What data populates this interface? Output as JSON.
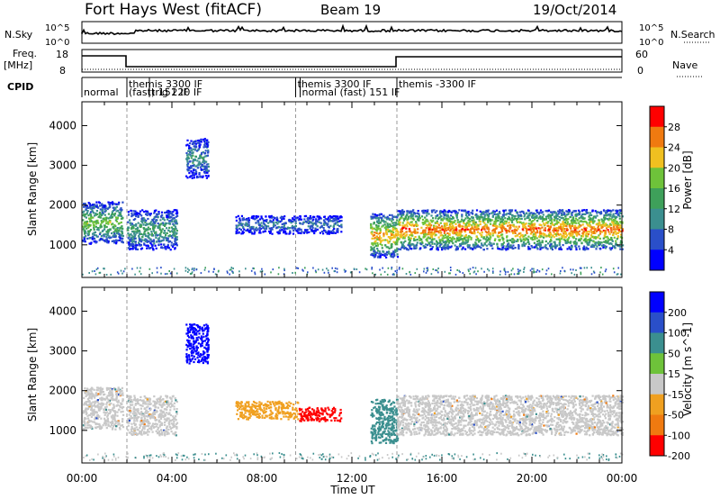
{
  "header": {
    "station": "Fort Hays West (fitACF)",
    "beam": "Beam 19",
    "date": "19/Oct/2014"
  },
  "strips": {
    "nsky_label": "N.Sky",
    "nsky_ticks": [
      "10^5",
      "10^0"
    ],
    "nsearch_label": "N.Search",
    "nsearch_ticks_right": [
      "10^5",
      "10^0"
    ],
    "freq_label": "Freq.",
    "freq_unit": "[MHz]",
    "freq_ticks": [
      "18",
      "8"
    ],
    "nave_label": "Nave",
    "nave_ticks": [
      "60",
      "0"
    ],
    "cpid_label": "CPID"
  },
  "cpid_segments": [
    {
      "label": "normal",
      "start_h": 0.0,
      "end_h": 2.0,
      "row": 1
    },
    {
      "label": "themis 3300 IF",
      "start_h": 2.0,
      "end_h": 9.5,
      "row": 0
    },
    {
      "label": "(fast) 151 IF",
      "start_h": 2.0,
      "end_h": 4.0,
      "row": 1
    },
    {
      "label": "trig 220 IF",
      "start_h": 3.0,
      "end_h": 9.5,
      "row": 1
    },
    {
      "label": "themis 3300 IF",
      "start_h": 9.5,
      "end_h": 11.0,
      "row": 0
    },
    {
      "label": "normal (fast) 151 IF",
      "start_h": 9.7,
      "end_h": 14.0,
      "row": 1
    },
    {
      "label": "themis -3300 IF",
      "start_h": 14.0,
      "end_h": 24.0,
      "row": 0
    }
  ],
  "chart_data": [
    {
      "type": "heatmap",
      "panel": "power",
      "xlabel": "",
      "ylabel": "Slant Range [km]",
      "x_range_h": [
        0,
        24
      ],
      "ylim": [
        180,
        4600
      ],
      "y_ticks": [
        1000,
        2000,
        3000,
        4000
      ],
      "colorbar": {
        "label": "Power [dB]",
        "ticks": [
          4,
          8,
          12,
          16,
          20,
          24,
          28
        ],
        "range": [
          0,
          32
        ],
        "colors": [
          "#0000ff",
          "#2a4fc9",
          "#3b8f8f",
          "#3ea05a",
          "#6ec23a",
          "#f0c020",
          "#f07a10",
          "#ff0000"
        ]
      },
      "regions": [
        {
          "name": "morning-echo",
          "x_h": [
            0.0,
            1.8
          ],
          "y_km": [
            1050,
            2100
          ],
          "value": 16
        },
        {
          "name": "rising-band",
          "x_h": [
            2.0,
            4.2
          ],
          "y_km": [
            900,
            1900
          ],
          "value": 12
        },
        {
          "name": "high-patch",
          "x_h": [
            4.6,
            5.6
          ],
          "y_km": [
            2700,
            3700
          ],
          "value": 10
        },
        {
          "name": "mid-band",
          "x_h": [
            6.8,
            11.5
          ],
          "y_km": [
            1300,
            1750
          ],
          "value": 8
        },
        {
          "name": "descending-band",
          "x_h": [
            12.8,
            14.0
          ],
          "y_km": [
            700,
            1800
          ],
          "value": 22
        },
        {
          "name": "afternoon-band",
          "x_h": [
            14.0,
            24.0
          ],
          "y_km": [
            900,
            1900
          ],
          "value": 24
        }
      ]
    },
    {
      "type": "heatmap",
      "panel": "velocity",
      "xlabel": "Time UT",
      "ylabel": "Slant Range [km]",
      "x_range_h": [
        0,
        24
      ],
      "x_ticks": [
        "00:00",
        "04:00",
        "08:00",
        "12:00",
        "16:00",
        "20:00",
        "00:00"
      ],
      "ylim": [
        180,
        4600
      ],
      "y_ticks": [
        1000,
        2000,
        3000,
        4000
      ],
      "colorbar": {
        "label": "Velocity [m s^-1]",
        "ticks": [
          200,
          100,
          50,
          15,
          -15,
          -50,
          -100,
          -200
        ],
        "colors": [
          "#0000ff",
          "#2a4fc9",
          "#3b8f8f",
          "#6ec23a",
          "#c8c8c8",
          "#f0a020",
          "#f07a10",
          "#ff0000"
        ]
      },
      "regions": [
        {
          "name": "morning-echo",
          "x_h": [
            0.0,
            1.8
          ],
          "y_km": [
            1050,
            2100
          ],
          "value": -15
        },
        {
          "name": "rising-band",
          "x_h": [
            2.0,
            4.2
          ],
          "y_km": [
            900,
            1900
          ],
          "value": -15
        },
        {
          "name": "high-patch",
          "x_h": [
            4.6,
            5.6
          ],
          "y_km": [
            2700,
            3700
          ],
          "value": 200
        },
        {
          "name": "mid-band",
          "x_h": [
            6.8,
            9.6
          ],
          "y_km": [
            1300,
            1750
          ],
          "value": -50
        },
        {
          "name": "mid-band-red",
          "x_h": [
            9.6,
            11.5
          ],
          "y_km": [
            1250,
            1600
          ],
          "value": -200
        },
        {
          "name": "descending-band",
          "x_h": [
            12.8,
            14.0
          ],
          "y_km": [
            700,
            1800
          ],
          "value": 50
        },
        {
          "name": "afternoon-band",
          "x_h": [
            14.0,
            24.0
          ],
          "y_km": [
            900,
            1900
          ],
          "value": -15
        }
      ]
    }
  ]
}
